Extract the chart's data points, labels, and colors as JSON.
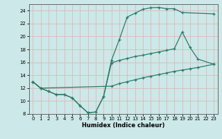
{
  "xlabel": "Humidex (Indice chaleur)",
  "bg_color": "#cce8e8",
  "grid_color": "#ddb8b8",
  "line_color": "#2a7a6a",
  "xlim": [
    -0.5,
    23.5
  ],
  "ylim": [
    8,
    25
  ],
  "xticks": [
    0,
    1,
    2,
    3,
    4,
    5,
    6,
    7,
    8,
    9,
    10,
    11,
    12,
    13,
    14,
    15,
    16,
    17,
    18,
    19,
    20,
    21,
    22,
    23
  ],
  "yticks": [
    8,
    10,
    12,
    14,
    16,
    18,
    20,
    22,
    24
  ],
  "line1_x": [
    0,
    1,
    2,
    3,
    4,
    5,
    6,
    7,
    8,
    9,
    10,
    11,
    12,
    13,
    14,
    15,
    16,
    17,
    18,
    19,
    23
  ],
  "line1_y": [
    13,
    12,
    11.5,
    11,
    11,
    10.5,
    9.3,
    8.2,
    8.3,
    10.7,
    16.3,
    19.5,
    23.0,
    23.6,
    24.2,
    24.45,
    24.5,
    24.3,
    24.3,
    23.7,
    23.5
  ],
  "line2_x": [
    0,
    1,
    2,
    3,
    4,
    5,
    6,
    7,
    8,
    9,
    10,
    11,
    12,
    13,
    14,
    15,
    16,
    17,
    18,
    19,
    20,
    21,
    23
  ],
  "line2_y": [
    13,
    12,
    11.5,
    11,
    11,
    10.5,
    9.3,
    8.2,
    8.3,
    10.7,
    15.9,
    16.3,
    16.6,
    16.9,
    17.1,
    17.35,
    17.6,
    17.85,
    18.1,
    20.7,
    18.3,
    16.5,
    15.7
  ],
  "line3_x": [
    0,
    1,
    10,
    11,
    12,
    13,
    14,
    15,
    16,
    17,
    18,
    19,
    20,
    21,
    23
  ],
  "line3_y": [
    13,
    12,
    12.3,
    12.7,
    13.0,
    13.3,
    13.6,
    13.85,
    14.1,
    14.35,
    14.6,
    14.8,
    15.0,
    15.2,
    15.7
  ]
}
